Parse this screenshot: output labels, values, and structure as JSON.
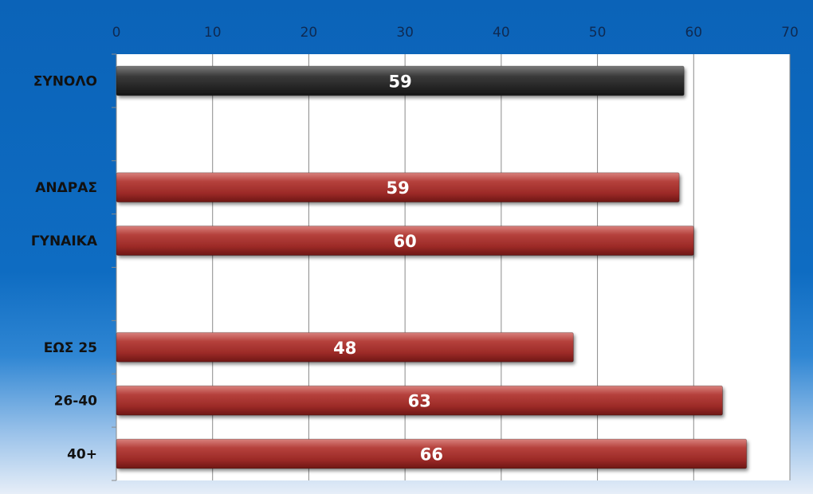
{
  "chart_data": {
    "type": "bar",
    "orientation": "horizontal",
    "categories": [
      "ΣΥΝΟΛΟ",
      "",
      "ΑΝΔΡΑΣ",
      "ΓΥΝΑΙΚΑ",
      "",
      "ΕΩΣ 25",
      "26-40",
      "40+"
    ],
    "values": [
      59,
      null,
      58.5,
      60,
      null,
      47.5,
      63,
      65.5
    ],
    "data_labels": [
      "59",
      "",
      "59",
      "60",
      "",
      "48",
      "63",
      "66"
    ],
    "bar_colors": [
      "#2b2b2b",
      "",
      "#a3302d",
      "#a3302d",
      "",
      "#a3302d",
      "#a3302d",
      "#a3302d"
    ],
    "xlim": [
      0,
      70
    ],
    "xticks": [
      0,
      10,
      20,
      30,
      40,
      50,
      60,
      70
    ],
    "xaxis_position": "top",
    "grid": true,
    "legend": "none",
    "background": "#0b63b8",
    "plot_background": "#ffffff"
  }
}
